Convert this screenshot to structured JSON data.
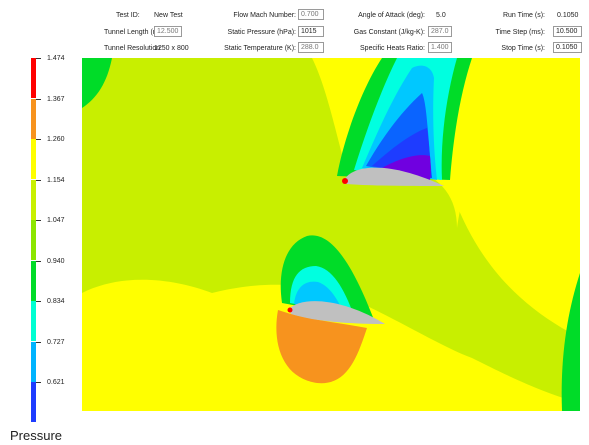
{
  "header": {
    "test_id_label": "Test ID:",
    "test_id_value": "New Test",
    "tunnel_length_label": "Tunnel Length (m):",
    "tunnel_length_value": "12.500",
    "tunnel_resolution_label": "Tunnel Resolution:",
    "tunnel_resolution_value": "1250 x 800",
    "mach_label": "Flow Mach Number:",
    "mach_value": "0.700",
    "static_pressure_label": "Static Pressure (hPa):",
    "static_pressure_value": "1015",
    "static_temp_label": "Static Temperature (K):",
    "static_temp_value": "288.0",
    "aoa_label": "Angle of Attack (deg):",
    "aoa_value": "5.0",
    "gas_constant_label": "Gas Constant (J/kg-K):",
    "gas_constant_value": "287.0",
    "heats_ratio_label": "Specific Heats Ratio:",
    "heats_ratio_value": "1.400",
    "run_time_label": "Run Time (s):",
    "run_time_value": "0.1050",
    "time_step_label": "Time Step (ms):",
    "time_step_value": "10.500",
    "stop_time_label": "Stop Time (s):",
    "stop_time_value": "0.1050"
  },
  "legend": {
    "levels": [
      {
        "label": "1.474",
        "color": "#ff0000"
      },
      {
        "label": "1.367",
        "color": "#f7931e"
      },
      {
        "label": "1.260",
        "color": "#ffff00"
      },
      {
        "label": "1.154",
        "color": "#c8f000"
      },
      {
        "label": "1.047",
        "color": "#8ce600"
      },
      {
        "label": "0.940",
        "color": "#00dc28"
      },
      {
        "label": "0.834",
        "color": "#00ffd2"
      },
      {
        "label": "0.727",
        "color": "#00b4ff"
      },
      {
        "label": "0.621",
        "color": "#1e3cff"
      }
    ],
    "bottom_color": "#1400dc"
  },
  "colors": {
    "field_bg": "#c8ef00",
    "orange": "#f7931e",
    "yellow": "#ffff00",
    "green": "#00dc28",
    "cyan": "#00ffe0",
    "lightblue": "#00c8ff",
    "blue": "#0a64ff",
    "darkblue": "#1e3cff",
    "violet": "#7000e0",
    "airfoil": "#c0c0c0",
    "red": "#ff0000"
  },
  "footer_label": "Pressure"
}
